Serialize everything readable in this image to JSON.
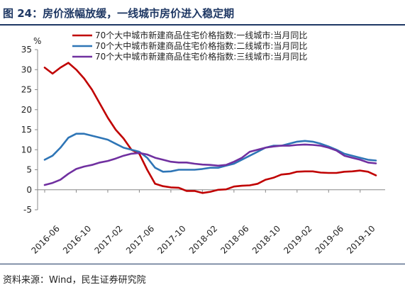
{
  "header": {
    "title": "图 24：房价涨幅放缓，一线城市房价进入稳定期"
  },
  "footer": {
    "source": "资料来源：Wind，民生证券研究院"
  },
  "colors": {
    "title": "#1f3864",
    "series1": "#c00000",
    "series2": "#2e75b6",
    "series3": "#7030a0"
  },
  "chart_data": {
    "type": "line",
    "title": "",
    "xlabel": "",
    "ylabel": "%",
    "ylim": [
      -5,
      35
    ],
    "yticks": [
      -5,
      0,
      5,
      10,
      15,
      20,
      25,
      30,
      35
    ],
    "grid": false,
    "legend_position": "top-right",
    "x_tick_labels": [
      "2016-06",
      "2016-10",
      "2017-02",
      "2017-06",
      "2017-10",
      "2018-02",
      "2018-06",
      "2018-10",
      "2019-02",
      "2019-06",
      "2019-10"
    ],
    "x": [
      "2016-06",
      "2016-07",
      "2016-08",
      "2016-09",
      "2016-10",
      "2016-11",
      "2016-12",
      "2017-01",
      "2017-02",
      "2017-03",
      "2017-04",
      "2017-05",
      "2017-06",
      "2017-07",
      "2017-08",
      "2017-09",
      "2017-10",
      "2017-11",
      "2017-12",
      "2018-01",
      "2018-02",
      "2018-03",
      "2018-04",
      "2018-05",
      "2018-06",
      "2018-07",
      "2018-08",
      "2018-09",
      "2018-10",
      "2018-11",
      "2018-12",
      "2019-01",
      "2019-02",
      "2019-03",
      "2019-04",
      "2019-05",
      "2019-06",
      "2019-07",
      "2019-08",
      "2019-09",
      "2019-10",
      "2019-11",
      "2019-12"
    ],
    "series": [
      {
        "name": "70个大中城市新建商品住宅价格指数:一线城市:当月同比",
        "color": "#c00000",
        "values": [
          30.5,
          29.0,
          30.5,
          31.7,
          30.0,
          27.8,
          25.0,
          21.5,
          18.0,
          15.0,
          12.8,
          10.0,
          9.0,
          5.0,
          1.5,
          0.9,
          0.6,
          0.5,
          -0.3,
          -0.3,
          -0.8,
          -0.5,
          0.0,
          0.1,
          0.8,
          1.0,
          1.1,
          1.5,
          2.5,
          3.0,
          3.8,
          4.0,
          4.5,
          4.6,
          4.6,
          4.3,
          4.2,
          4.2,
          4.5,
          4.6,
          4.8,
          4.5,
          3.6
        ]
      },
      {
        "name": "70个大中城市新建商品住宅价格指数:二线城市:当月同比",
        "color": "#2e75b6",
        "values": [
          7.5,
          8.5,
          10.5,
          13.0,
          14.0,
          14.0,
          13.5,
          13.0,
          12.5,
          11.5,
          10.5,
          10.0,
          9.5,
          8.0,
          5.5,
          4.5,
          4.6,
          5.0,
          5.0,
          5.0,
          5.2,
          5.5,
          5.5,
          6.0,
          6.5,
          7.5,
          8.5,
          9.5,
          10.5,
          11.0,
          11.0,
          11.5,
          12.0,
          12.2,
          12.0,
          11.5,
          10.8,
          10.0,
          9.0,
          8.5,
          8.0,
          7.5,
          7.3
        ]
      },
      {
        "name": "70个大中城市新建商品住宅价格指数:三线城市:当月同比",
        "color": "#7030a0",
        "values": [
          1.2,
          1.7,
          2.5,
          4.0,
          5.2,
          5.8,
          6.2,
          6.8,
          7.2,
          7.8,
          8.5,
          9.0,
          9.2,
          8.8,
          8.0,
          7.5,
          7.0,
          6.8,
          6.8,
          6.5,
          6.3,
          6.2,
          6.0,
          6.2,
          7.0,
          8.0,
          9.5,
          10.0,
          10.5,
          10.8,
          11.0,
          11.0,
          11.2,
          11.3,
          11.2,
          11.0,
          10.5,
          9.8,
          8.5,
          8.0,
          7.5,
          6.8,
          6.6
        ]
      }
    ]
  }
}
